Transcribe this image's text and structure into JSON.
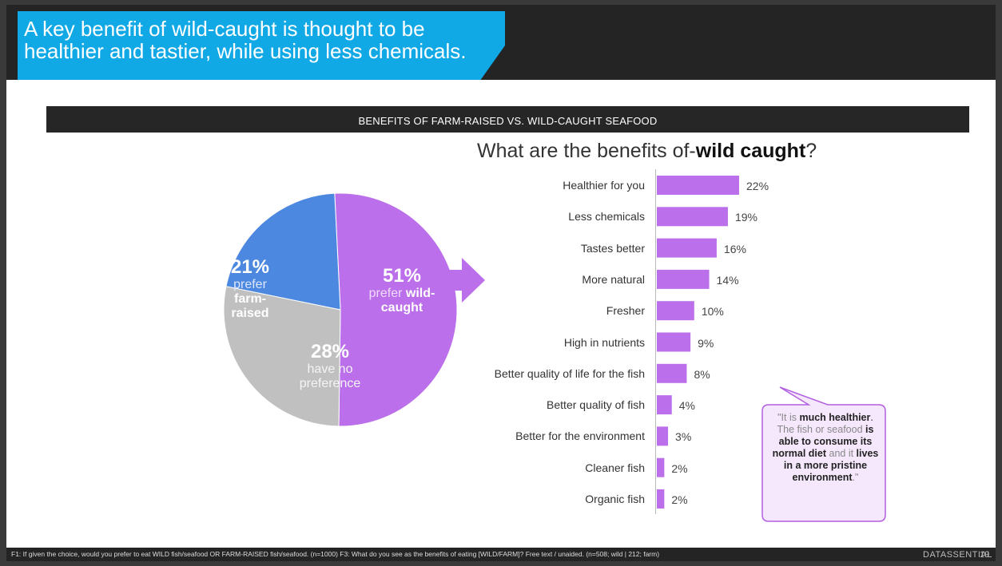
{
  "title": "A key benefit of wild-caught is thought to be healthier and tastier, while using less chemicals.",
  "band_title": "BENEFITS OF FARM-RAISED VS. WILD-CAUGHT SEAFOOD",
  "question": {
    "prefix": "What are the benefits of-",
    "bold": "wild caught",
    "suffix": "?"
  },
  "pie": {
    "slices": [
      {
        "pct": "51%",
        "line1": "prefer ",
        "line1_bold": "wild-",
        "line2_bold": "caught",
        "color": "#bb6fea"
      },
      {
        "pct": "28%",
        "line1": "have no",
        "line2": "preference",
        "color": "#c0c0c0"
      },
      {
        "pct": "21%",
        "line1": "prefer",
        "line1_bold": "farm-",
        "line2_bold": "raised",
        "color": "#4d88e0"
      }
    ]
  },
  "chart_data": [
    {
      "type": "pie",
      "categories": [
        "prefer wild-caught",
        "have no preference",
        "prefer farm-raised"
      ],
      "values": [
        51,
        28,
        21
      ],
      "colors": [
        "#bb6fea",
        "#c0c0c0",
        "#4d88e0"
      ]
    },
    {
      "type": "bar",
      "orientation": "horizontal",
      "title": "What are the benefits of-wild caught?",
      "categories": [
        "Healthier for you",
        "Less chemicals",
        "Tastes better",
        "More natural",
        "Fresher",
        "High in nutrients",
        "Better quality of life for the fish",
        "Better quality of fish",
        "Better for the environment",
        "Cleaner fish",
        "Organic fish"
      ],
      "values": [
        22,
        19,
        16,
        14,
        10,
        9,
        8,
        4,
        3,
        2,
        2
      ],
      "value_labels": [
        "22%",
        "19%",
        "16%",
        "14%",
        "10%",
        "9%",
        "8%",
        "4%",
        "3%",
        "2%",
        "2%"
      ],
      "color": "#bb6fea",
      "xlim": [
        0,
        22
      ]
    }
  ],
  "quote": {
    "p1_light": "\"It is ",
    "p1_bold": "much healthier",
    "p1_end": ".",
    "p2_light": "The fish or seafood ",
    "p2_bold": "is able to consume its normal diet",
    "p3_light": " and it ",
    "p3_bold": "lives in a more pristine environment",
    "p4_light": ".\""
  },
  "footnote": "F1: If given the choice, would you prefer to eat WILD fish/seafood OR FARM-RAISED fish/seafood. (n=1000) F3: What do you see as the benefits of eating [WILD/FARM]? Free text / unaided. (n=508; wild | 212; farm)",
  "brand": "DATASSENTIAL",
  "page_number": "19"
}
